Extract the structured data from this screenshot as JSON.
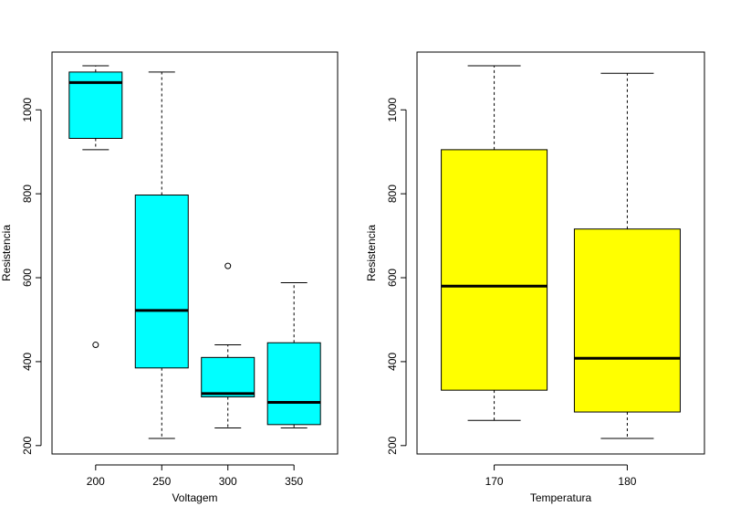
{
  "chart_data": [
    {
      "type": "boxplot",
      "xlabel": "Voltagem",
      "ylabel": "Resistencia",
      "ylim": [
        200,
        1100
      ],
      "yticks": [
        200,
        400,
        600,
        800,
        1000
      ],
      "categories": [
        "200",
        "250",
        "300",
        "350"
      ],
      "fill": "#00ffff",
      "boxes": [
        {
          "low": 905,
          "q1": 932,
          "median": 1065,
          "q3": 1090,
          "high": 1105,
          "outliers": [
            440
          ]
        },
        {
          "low": 217,
          "q1": 385,
          "median": 522,
          "q3": 797,
          "high": 1090,
          "outliers": []
        },
        {
          "low": 242,
          "q1": 316,
          "median": 324,
          "q3": 410,
          "high": 440,
          "outliers": [
            628
          ]
        },
        {
          "low": 242,
          "q1": 250,
          "median": 303,
          "q3": 445,
          "high": 588,
          "outliers": []
        }
      ]
    },
    {
      "type": "boxplot",
      "xlabel": "Temperatura",
      "ylabel": "Resistencia",
      "ylim": [
        200,
        1100
      ],
      "yticks": [
        200,
        400,
        600,
        800,
        1000
      ],
      "categories": [
        "170",
        "180"
      ],
      "fill": "#ffff00",
      "boxes": [
        {
          "low": 260,
          "q1": 332,
          "median": 580,
          "q3": 905,
          "high": 1105,
          "outliers": []
        },
        {
          "low": 217,
          "q1": 280,
          "median": 408,
          "q3": 716,
          "high": 1087,
          "outliers": []
        }
      ]
    }
  ]
}
